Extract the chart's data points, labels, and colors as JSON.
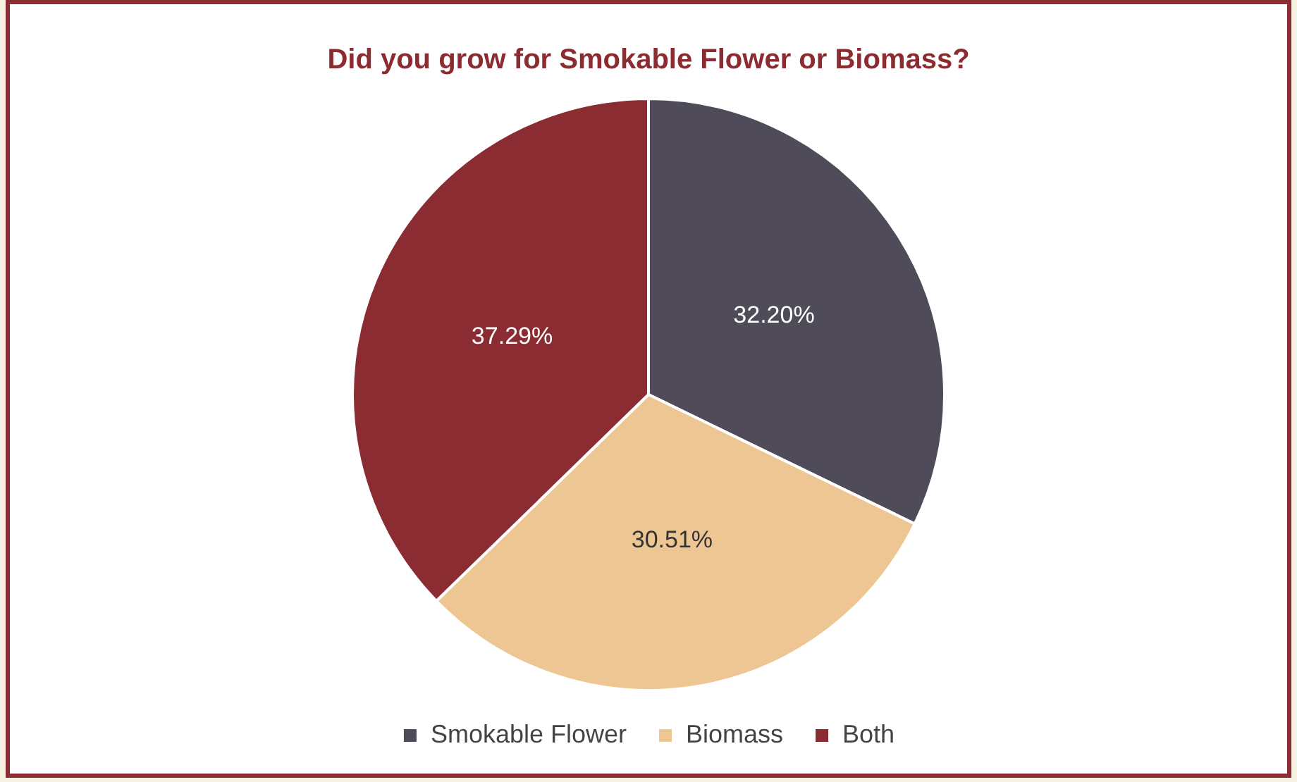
{
  "chart_data": {
    "type": "pie",
    "title": "Did you grow for Smokable Flower or Biomass?",
    "categories": [
      "Smokable Flower",
      "Biomass",
      "Both"
    ],
    "values": [
      32.2,
      30.51,
      37.29
    ],
    "colors": [
      "#4f4b58",
      "#eec694",
      "#8a2c31"
    ],
    "value_labels": [
      "32.20%",
      "30.51%",
      "37.29%"
    ],
    "legend": "bottom"
  }
}
